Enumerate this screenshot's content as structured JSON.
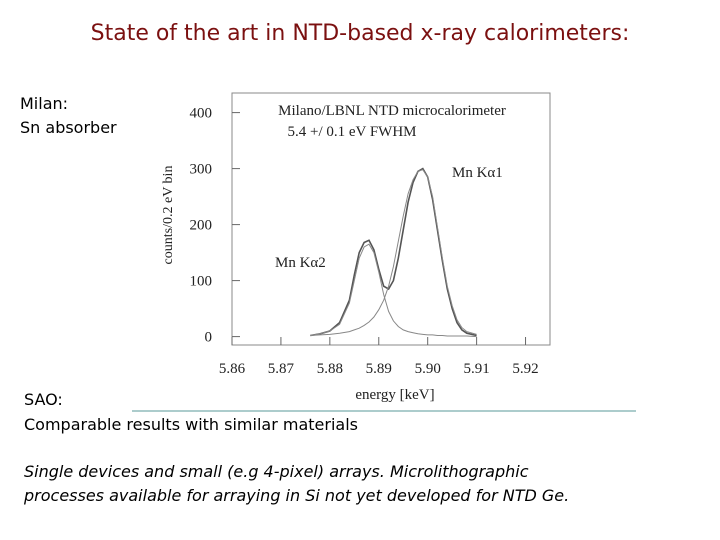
{
  "slide": {
    "title": "State of the art in NTD-based x-ray calorimeters:",
    "milan": [
      "Milan:",
      "Sn absorber"
    ],
    "sao": [
      "SAO:",
      "Comparable results with similar materials"
    ],
    "footer": [
      "Single devices and small (e.g 4-pixel) arrays.  Microlithographic",
      "processes available for arraying in Si not yet developed for NTD Ge."
    ]
  },
  "chart_data": {
    "type": "line",
    "title": "Milano/LBNL NTD microcalorimeter",
    "subtitle": "5.4 +/  0.1 eV FWHM",
    "x_label": "energy [keV]",
    "y_label": "counts/0.2 eV bin",
    "annotations": [
      "Mn Kα1",
      "Mn Kα2"
    ],
    "x": [
      5.876,
      5.878,
      5.88,
      5.882,
      5.884,
      5.885,
      5.886,
      5.887,
      5.888,
      5.889,
      5.89,
      5.891,
      5.892,
      5.893,
      5.894,
      5.895,
      5.896,
      5.897,
      5.898,
      5.899,
      5.9,
      5.901,
      5.902,
      5.903,
      5.904,
      5.905,
      5.906,
      5.907,
      5.908,
      5.91
    ],
    "series": [
      {
        "color": "#555555",
        "values": [
          2,
          5,
          10,
          25,
          65,
          110,
          150,
          168,
          172,
          155,
          120,
          90,
          85,
          100,
          140,
          190,
          240,
          275,
          295,
          300,
          285,
          245,
          190,
          135,
          85,
          50,
          25,
          12,
          6,
          2
        ]
      },
      {
        "color": "#888888",
        "values": [
          2,
          3,
          4,
          6,
          9,
          12,
          15,
          20,
          26,
          35,
          48,
          65,
          90,
          125,
          170,
          215,
          255,
          280,
          295,
          298,
          285,
          250,
          195,
          140,
          90,
          55,
          30,
          16,
          9,
          4
        ]
      },
      {
        "color": "#888888",
        "values": [
          2,
          5,
          10,
          22,
          60,
          100,
          140,
          160,
          165,
          150,
          115,
          75,
          45,
          28,
          18,
          12,
          9,
          7,
          5,
          4,
          3,
          3,
          2,
          2,
          1,
          1,
          1,
          1,
          1,
          0
        ]
      }
    ],
    "xlim": [
      5.86,
      5.925
    ],
    "ylim": [
      -15,
      435
    ],
    "xticks": [
      5.86,
      5.87,
      5.88,
      5.89,
      {
        "value": 5.9,
        "label": "5.90"
      },
      5.91,
      5.92
    ],
    "yticks": [
      0,
      100,
      200,
      300,
      400
    ]
  }
}
